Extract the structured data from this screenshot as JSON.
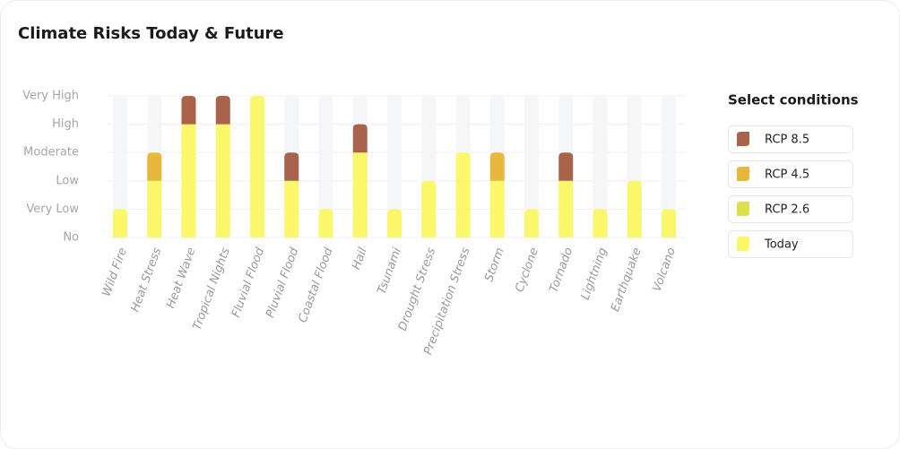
{
  "chart_data": {
    "type": "stacked-bar",
    "title": "Climate Risks Today & Future",
    "legend_title": "Select conditions",
    "categories": [
      "Wild Fire",
      "Heat Stress",
      "Heat Wave",
      "Tropical Nights",
      "Fluvial Flood",
      "Pluvial Flood",
      "Coastal Flood",
      "Hail",
      "Tsunami",
      "Drought Stress",
      "Precipitation Stress",
      "Storm",
      "Cyclone",
      "Tornado",
      "Lightning",
      "Earthquake",
      "Volcano"
    ],
    "series": [
      {
        "name": "RCP 8.5",
        "color": "#a8634a",
        "values": [
          0,
          0,
          1,
          1,
          0,
          1,
          0,
          1,
          0,
          0,
          0,
          0,
          0,
          1,
          0,
          0,
          0
        ]
      },
      {
        "name": "RCP 4.5",
        "color": "#e6b93d",
        "values": [
          0,
          1,
          0,
          0,
          0,
          0,
          0,
          0,
          0,
          0,
          0,
          1,
          0,
          0,
          0,
          0,
          0
        ]
      },
      {
        "name": "RCP 2.6",
        "color": "#dde04a",
        "values": [
          0,
          0,
          0,
          0,
          0,
          0,
          0,
          0,
          0,
          0,
          0,
          0,
          0,
          0,
          0,
          0,
          0
        ]
      },
      {
        "name": "Today",
        "color": "#faf76a",
        "values": [
          1,
          2,
          4,
          4,
          5,
          2,
          1,
          3,
          1,
          2,
          3,
          2,
          1,
          2,
          1,
          2,
          1
        ]
      }
    ],
    "ylim": [
      0,
      5
    ],
    "yticks": [
      {
        "value": 0,
        "label": "No"
      },
      {
        "value": 1,
        "label": "Very Low"
      },
      {
        "value": 2,
        "label": "Low"
      },
      {
        "value": 3,
        "label": "Moderate"
      },
      {
        "value": 4,
        "label": "High"
      },
      {
        "value": 5,
        "label": "Very High"
      }
    ],
    "grid": true
  }
}
